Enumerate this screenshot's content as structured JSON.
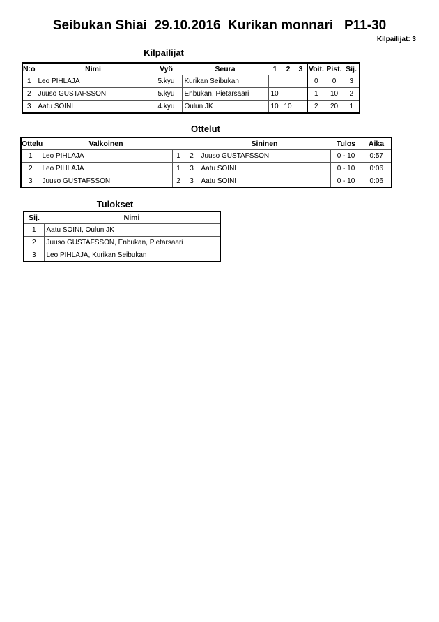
{
  "title": "Seibukan Shiai  29.10.2016  Kurikan monnari   P11-30",
  "count": "Kilpailijat: 3",
  "kilpailijat": {
    "heading": "Kilpailijat",
    "headers": [
      "N:o",
      "Nimi",
      "Vyö",
      "Seura",
      "1",
      "2",
      "3",
      "Voit.",
      "Pist.",
      "Sij."
    ],
    "rows": [
      [
        "1",
        "Leo PIHLAJA",
        "5.kyu",
        "Kurikan Seibukan",
        "",
        "",
        "",
        "0",
        "0",
        "3"
      ],
      [
        "2",
        "Juuso GUSTAFSSON",
        "5.kyu",
        "Enbukan, Pietarsaari",
        "10",
        "",
        "",
        "1",
        "10",
        "2"
      ],
      [
        "3",
        "Aatu SOINI",
        "4.kyu",
        "Oulun JK",
        "10",
        "10",
        "",
        "2",
        "20",
        "1"
      ]
    ]
  },
  "ottelut": {
    "heading": "Ottelut",
    "headers": [
      "Ottelu",
      "Valkoinen",
      "",
      "",
      "Sininen",
      "Tulos",
      "Aika"
    ],
    "rows": [
      [
        "1",
        "Leo PIHLAJA",
        "1",
        "2",
        "Juuso GUSTAFSSON",
        "0 - 10",
        "0:57"
      ],
      [
        "2",
        "Leo PIHLAJA",
        "1",
        "3",
        "Aatu SOINI",
        "0 - 10",
        "0:06"
      ],
      [
        "3",
        "Juuso GUSTAFSSON",
        "2",
        "3",
        "Aatu SOINI",
        "0 - 10",
        "0:06"
      ]
    ]
  },
  "tulokset": {
    "heading": "Tulokset",
    "headers": [
      "Sij.",
      "Nimi"
    ],
    "rows": [
      [
        "1",
        "Aatu SOINI, Oulun JK"
      ],
      [
        "2",
        "Juuso GUSTAFSSON, Enbukan, Pietarsaari"
      ],
      [
        "3",
        "Leo PIHLAJA, Kurikan Seibukan"
      ]
    ]
  }
}
